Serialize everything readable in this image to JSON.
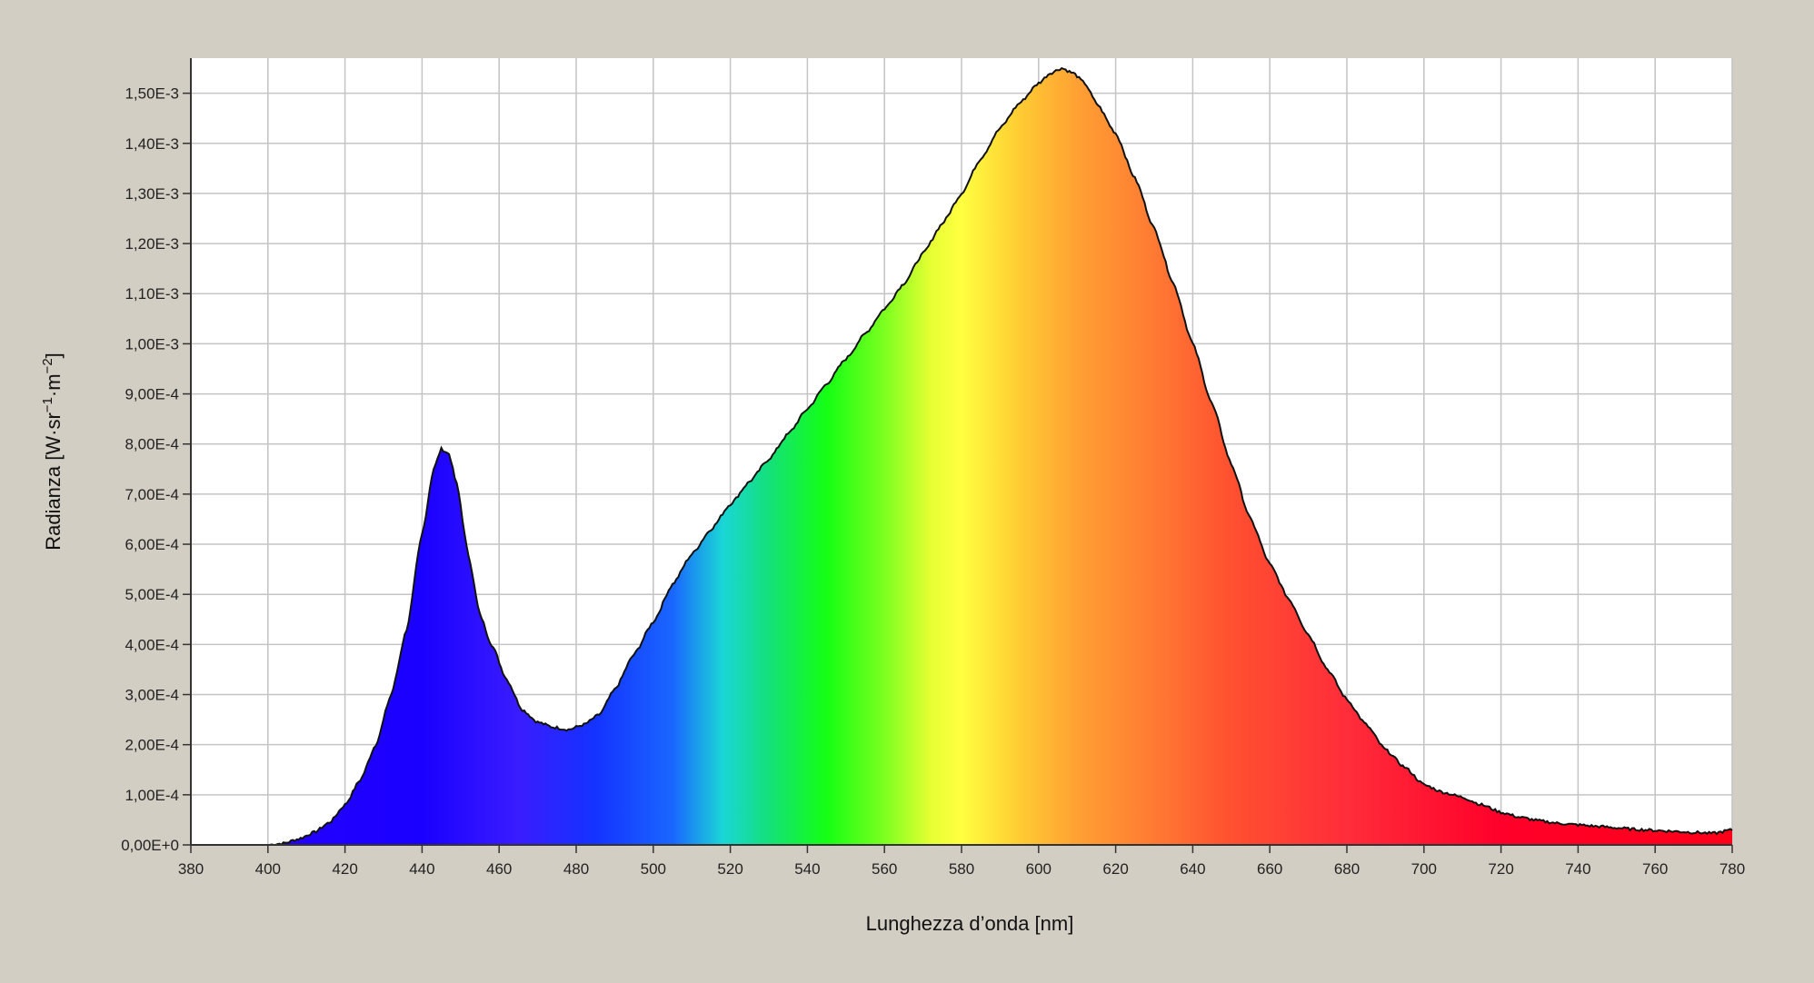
{
  "chart_data": {
    "type": "area",
    "title": "",
    "xlabel": "Lunghezza d’onda [nm]",
    "ylabel_main": "Radianza [W·sr",
    "ylabel_sup1": "−1",
    "ylabel_mid": "·m",
    "ylabel_sup2": "−2",
    "ylabel_end": "]",
    "xlim": [
      380,
      780
    ],
    "ylim": [
      0,
      0.00157
    ],
    "grid": true,
    "x_ticks": [
      380,
      400,
      420,
      440,
      460,
      480,
      500,
      520,
      540,
      560,
      580,
      600,
      620,
      640,
      660,
      680,
      700,
      720,
      740,
      760,
      780
    ],
    "x_tick_labels": [
      "380",
      "400",
      "420",
      "440",
      "460",
      "480",
      "500",
      "520",
      "540",
      "560",
      "580",
      "600",
      "620",
      "640",
      "660",
      "680",
      "700",
      "720",
      "740",
      "760",
      "780"
    ],
    "y_ticks": [
      0,
      0.0001,
      0.0002,
      0.0003,
      0.0004,
      0.0005,
      0.0006,
      0.0007,
      0.0008,
      0.0009,
      0.001,
      0.0011,
      0.0012,
      0.0013,
      0.0014,
      0.0015
    ],
    "y_tick_labels": [
      "0,00E+0",
      "1,00E-4",
      "2,00E-4",
      "3,00E-4",
      "4,00E-4",
      "5,00E-4",
      "6,00E-4",
      "7,00E-4",
      "8,00E-4",
      "9,00E-4",
      "1,00E-3",
      "1,10E-3",
      "1,20E-3",
      "1,30E-3",
      "1,40E-3",
      "1,50E-3"
    ],
    "series": [
      {
        "x": [
          380,
          400,
          404,
          408,
          412,
          416,
          420,
          424,
          428,
          432,
          436,
          440,
          443,
          445,
          447,
          449,
          452,
          455,
          458,
          462,
          466,
          470,
          474,
          478,
          482,
          486,
          490,
          495,
          500,
          505,
          510,
          515,
          520,
          525,
          530,
          535,
          540,
          545,
          550,
          555,
          560,
          565,
          570,
          575,
          580,
          585,
          590,
          595,
          600,
          603,
          606,
          609,
          612,
          615,
          620,
          625,
          630,
          635,
          640,
          645,
          650,
          655,
          660,
          665,
          670,
          675,
          680,
          685,
          690,
          695,
          700,
          705,
          710,
          715,
          720,
          725,
          730,
          735,
          740,
          745,
          750,
          755,
          760,
          765,
          770,
          775,
          780
        ],
        "y": [
          0,
          0,
          3e-06,
          1.2e-05,
          2.5e-05,
          4.5e-05,
          8e-05,
          0.00013,
          0.0002,
          0.0003,
          0.00043,
          0.00062,
          0.00075,
          0.00079,
          0.00078,
          0.00072,
          0.00058,
          0.00046,
          0.0004,
          0.00033,
          0.00027,
          0.000245,
          0.000235,
          0.00023,
          0.00024,
          0.00026,
          0.00031,
          0.00038,
          0.000445,
          0.00052,
          0.00058,
          0.00063,
          0.00068,
          0.000725,
          0.00077,
          0.00082,
          0.00087,
          0.00092,
          0.00097,
          0.00102,
          0.00107,
          0.00112,
          0.00118,
          0.00124,
          0.0013,
          0.00137,
          0.00143,
          0.00148,
          0.00152,
          0.00154,
          0.00155,
          0.00154,
          0.00152,
          0.00148,
          0.00142,
          0.00133,
          0.00123,
          0.00112,
          0.001,
          0.00088,
          0.00076,
          0.00065,
          0.00056,
          0.00049,
          0.00042,
          0.00035,
          0.00029,
          0.00024,
          0.00019,
          0.000155,
          0.00012,
          0.000105,
          9.5e-05,
          8e-05,
          6.5e-05,
          5.5e-05,
          4.8e-05,
          4.3e-05,
          4e-05,
          3.7e-05,
          3.4e-05,
          3.1e-05,
          2.9e-05,
          2.7e-05,
          2.5e-05,
          2.3e-05,
          3e-05
        ]
      }
    ],
    "colors": {
      "plot_background": "#ffffff",
      "page_background": "#d3cec4",
      "grid": "#c4c4c4",
      "outline": "#111111"
    },
    "spectrum_gradient": [
      {
        "nm": 380,
        "color": "#2a00ff"
      },
      {
        "nm": 440,
        "color": "#1a00ff"
      },
      {
        "nm": 465,
        "color": "#3a1cff"
      },
      {
        "nm": 485,
        "color": "#1433ff"
      },
      {
        "nm": 505,
        "color": "#1a66ff"
      },
      {
        "nm": 518,
        "color": "#1ad6d6"
      },
      {
        "nm": 530,
        "color": "#14e07a"
      },
      {
        "nm": 545,
        "color": "#14ff14"
      },
      {
        "nm": 560,
        "color": "#7cff1f"
      },
      {
        "nm": 572,
        "color": "#e6ff33"
      },
      {
        "nm": 580,
        "color": "#ffff40"
      },
      {
        "nm": 595,
        "color": "#ffcc33"
      },
      {
        "nm": 610,
        "color": "#ffa033"
      },
      {
        "nm": 630,
        "color": "#ff7a33"
      },
      {
        "nm": 650,
        "color": "#ff5030"
      },
      {
        "nm": 680,
        "color": "#ff2d3a"
      },
      {
        "nm": 720,
        "color": "#ff002a"
      },
      {
        "nm": 780,
        "color": "#ff0018"
      }
    ]
  }
}
